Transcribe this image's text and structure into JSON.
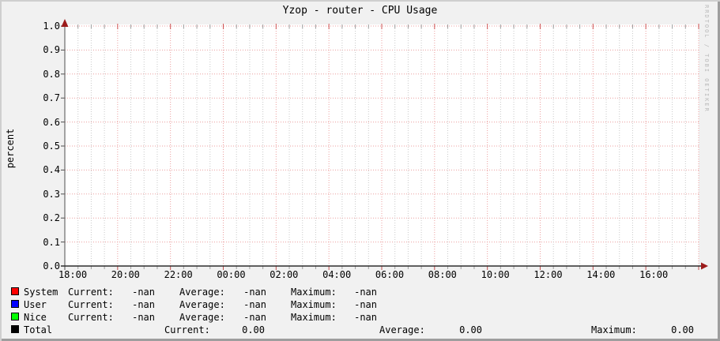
{
  "title": "Yzop - router - CPU Usage",
  "watermark": "RRDTOOL / TOBI OETIKER",
  "chart": {
    "y_axis_label": "percent",
    "y_ticks": [
      "1.0",
      "0.9",
      "0.8",
      "0.7",
      "0.6",
      "0.5",
      "0.4",
      "0.3",
      "0.2",
      "0.1",
      "0.0"
    ],
    "x_ticks": [
      "18:00",
      "20:00",
      "22:00",
      "00:00",
      "02:00",
      "04:00",
      "06:00",
      "08:00",
      "10:00",
      "12:00",
      "14:00",
      "16:00"
    ]
  },
  "legend": {
    "current_label": "Current:",
    "average_label": "Average:",
    "maximum_label": "Maximum:"
  },
  "colors": {
    "background": "#f1f1f1",
    "canvas": "#ffffff",
    "major_grid": "#ec9f9f",
    "minor_grid": "#c9c9c9",
    "arrow": "#9c1b1b",
    "watermark_text": "#b9b9b9"
  },
  "chart_data": {
    "type": "line",
    "title": "Yzop - router - CPU Usage",
    "ylabel": "percent",
    "ylim": [
      0.0,
      1.0
    ],
    "y_tick_interval": 0.1,
    "x_ticks": [
      "18:00",
      "20:00",
      "22:00",
      "00:00",
      "02:00",
      "04:00",
      "06:00",
      "08:00",
      "10:00",
      "12:00",
      "14:00",
      "16:00"
    ],
    "grid": true,
    "legend_position": "bottom",
    "series": [
      {
        "name": "System",
        "color": "#ff0000",
        "values": [],
        "stats": {
          "current": "-nan",
          "average": "-nan",
          "maximum": "-nan"
        }
      },
      {
        "name": "User",
        "color": "#0000ff",
        "values": [],
        "stats": {
          "current": "-nan",
          "average": "-nan",
          "maximum": "-nan"
        }
      },
      {
        "name": "Nice",
        "color": "#00ff00",
        "values": [],
        "stats": {
          "current": "-nan",
          "average": "-nan",
          "maximum": "-nan"
        }
      },
      {
        "name": "Total",
        "color": "#000000",
        "values": [],
        "stats": {
          "current": "0.00",
          "average": "0.00",
          "maximum": "0.00"
        }
      }
    ]
  }
}
